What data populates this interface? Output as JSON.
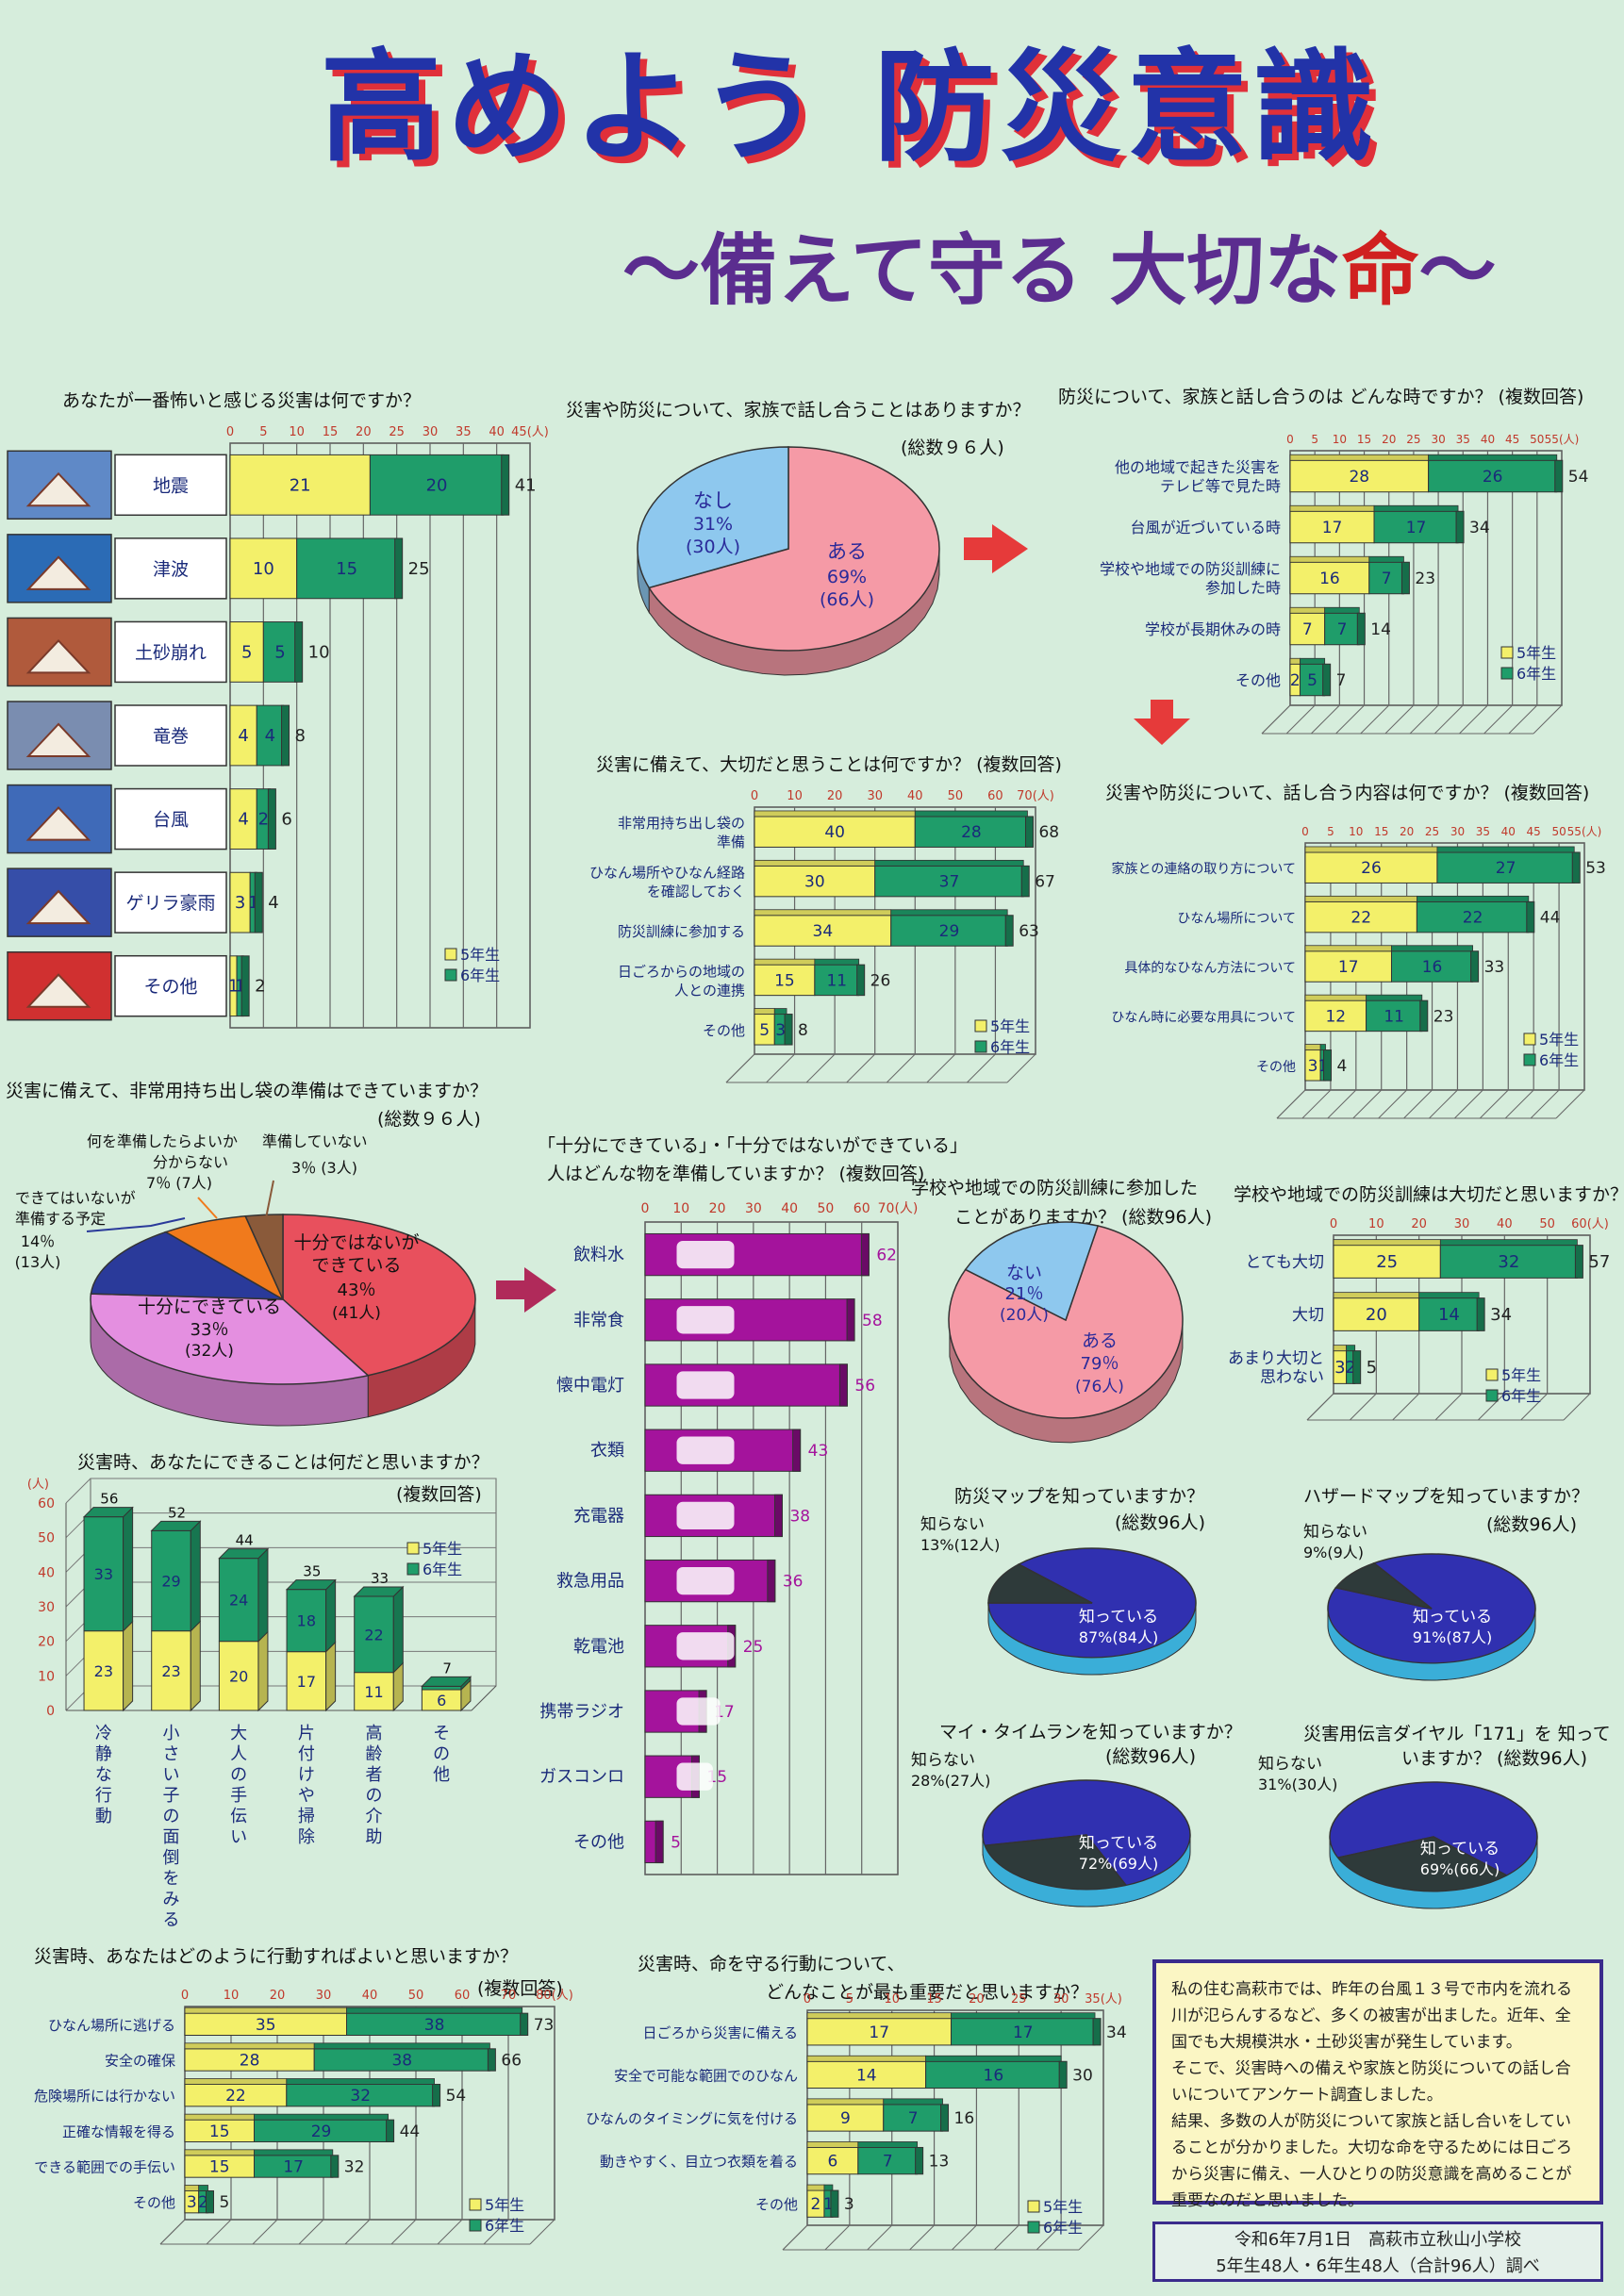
{
  "title": "高めよう 防災意識",
  "subtitle_pre": "～備えて守る 大切な",
  "subtitle_red": "命",
  "subtitle_post": "～",
  "legend": {
    "g5": "5年生",
    "g6": "6年生"
  },
  "colors": {
    "g5": "#f3f06a",
    "g6": "#1f9d6a",
    "pie_pink": "#f59aa6",
    "pie_blue": "#8ec8ee",
    "magenta": "#a4139c",
    "dark_blue": "#3030b0",
    "cyan": "#3aaed8",
    "dark_gray": "#2e3a3a"
  },
  "q1": {
    "title": "あなたが一番怖いと感じる災害は何ですか？",
    "chart_data": {
      "type": "bar",
      "orientation": "horizontal",
      "stacked": true,
      "categories": [
        "地震",
        "津波",
        "土砂崩れ",
        "竜巻",
        "台風",
        "ゲリラ豪雨",
        "その他"
      ],
      "series": [
        {
          "name": "5年生",
          "values": [
            21,
            10,
            5,
            4,
            4,
            3,
            1
          ]
        },
        {
          "name": "6年生",
          "values": [
            20,
            15,
            5,
            4,
            2,
            1,
            1
          ]
        }
      ],
      "totals": [
        41,
        25,
        10,
        8,
        6,
        4,
        2
      ],
      "xlim": [
        0,
        45
      ],
      "ticks": [
        "0",
        "5",
        "10",
        "15",
        "20",
        "25",
        "30",
        "35",
        "40",
        "45(人)"
      ],
      "legend_position": "bottom-right"
    }
  },
  "q2": {
    "title": "災害や防災について、家族で話し合うことはありますか？",
    "note": "(総数９６人)",
    "chart_data": {
      "type": "pie",
      "slices": [
        {
          "name": "ある",
          "pct": "69%",
          "count": "(66人)",
          "value": 66
        },
        {
          "name": "なし",
          "pct": "31%",
          "count": "(30人)",
          "value": 30
        }
      ]
    }
  },
  "q3": {
    "title": "防災について、家族と話し合うのは どんな時ですか？ (複数回答)",
    "chart_data": {
      "type": "bar",
      "orientation": "horizontal",
      "stacked": true,
      "categories": [
        [
          "他の地域で起きた災害を",
          "テレビ等で見た時"
        ],
        [
          "台風が近づいている時"
        ],
        [
          "学校や地域での防災訓練に",
          "参加した時"
        ],
        [
          "学校が長期休みの時"
        ],
        [
          "その他"
        ]
      ],
      "series": [
        {
          "name": "5年生",
          "values": [
            28,
            17,
            16,
            7,
            2
          ]
        },
        {
          "name": "6年生",
          "values": [
            26,
            17,
            7,
            7,
            5
          ]
        }
      ],
      "totals": [
        54,
        34,
        23,
        14,
        7
      ],
      "xlim": [
        0,
        55
      ],
      "ticks": [
        "0",
        "5",
        "10",
        "15",
        "20",
        "25",
        "30",
        "35",
        "40",
        "45",
        "50",
        "55(人)"
      ],
      "legend_position": "bottom-right"
    }
  },
  "q4": {
    "title": "災害に備えて、大切だと思うことは何ですか？ (複数回答)",
    "chart_data": {
      "type": "bar",
      "orientation": "horizontal",
      "stacked": true,
      "categories": [
        [
          "非常用持ち出し袋の",
          "準備"
        ],
        [
          "ひなん場所やひなん経路",
          "を確認しておく"
        ],
        [
          "防災訓練に参加する"
        ],
        [
          "日ごろからの地域の",
          "人との連携"
        ],
        [
          "その他"
        ]
      ],
      "series": [
        {
          "name": "5年生",
          "values": [
            40,
            30,
            34,
            15,
            5
          ]
        },
        {
          "name": "6年生",
          "values": [
            28,
            37,
            29,
            11,
            3
          ]
        }
      ],
      "totals": [
        68,
        67,
        63,
        26,
        8
      ],
      "xlim": [
        0,
        70
      ],
      "ticks": [
        "0",
        "10",
        "20",
        "30",
        "40",
        "50",
        "60",
        "70(人)"
      ],
      "legend_position": "bottom-right"
    }
  },
  "q5": {
    "title": "災害や防災について、話し合う内容は何ですか？ (複数回答)",
    "chart_data": {
      "type": "bar",
      "orientation": "horizontal",
      "stacked": true,
      "categories": [
        "家族との連絡の取り方について",
        "ひなん場所について",
        "具体的なひなん方法について",
        "ひなん時に必要な用具について",
        "その他"
      ],
      "series": [
        {
          "name": "5年生",
          "values": [
            26,
            22,
            17,
            12,
            3
          ]
        },
        {
          "name": "6年生",
          "values": [
            27,
            22,
            16,
            11,
            1
          ]
        }
      ],
      "totals": [
        53,
        44,
        33,
        23,
        4
      ],
      "xlim": [
        0,
        55
      ],
      "ticks": [
        "0",
        "5",
        "10",
        "15",
        "20",
        "25",
        "30",
        "35",
        "40",
        "45",
        "50",
        "55(人)"
      ],
      "legend_position": "bottom-right"
    }
  },
  "q6": {
    "title": "災害に備えて、非常用持ち出し袋の準備はできていますか？",
    "note": "(総数９６人)",
    "chart_data": {
      "type": "pie",
      "slices": [
        {
          "name": "十分ではないができている",
          "label_lines": [
            "十分ではないが",
            "できている"
          ],
          "pct": "43％",
          "count": "(41人)",
          "value": 41
        },
        {
          "name": "十分にできている",
          "pct": "33％",
          "count": "(32人)",
          "value": 32
        },
        {
          "name": "できてはいないが準備する予定",
          "label_lines": [
            "できてはいないが",
            "準備する予定"
          ],
          "pct": "14％",
          "count": "(13人)",
          "value": 13
        },
        {
          "name": "何を準備したらよいか分からない",
          "label_lines": [
            "何を準備したらよいか",
            "分からない"
          ],
          "pct": "7％",
          "count": "(7人)",
          "value": 7
        },
        {
          "name": "準備していない",
          "pct": "3％",
          "count": "(3人)",
          "value": 3
        }
      ]
    }
  },
  "q7": {
    "title_lines": [
      "「十分にできている」・「十分ではないができている」",
      "人はどんな物を準備していますか？ (複数回答)"
    ],
    "chart_data": {
      "type": "bar",
      "orientation": "horizontal",
      "categories": [
        "飲料水",
        "非常食",
        "懐中電灯",
        "衣類",
        "充電器",
        "救急用品",
        "乾電池",
        "携帯ラジオ",
        "ガスコンロ",
        "その他"
      ],
      "values": [
        62,
        58,
        56,
        43,
        38,
        36,
        25,
        17,
        15,
        5
      ],
      "xlim": [
        0,
        70
      ],
      "ticks": [
        "0",
        "10",
        "20",
        "30",
        "40",
        "50",
        "60",
        "70(人)"
      ]
    }
  },
  "q8": {
    "title": "災害時、あなたにできることは何だと思いますか？",
    "note": "(複数回答)",
    "chart_data": {
      "type": "bar",
      "orientation": "vertical",
      "stacked": true,
      "categories": [
        "冷静な行動",
        "小さい子の面倒をみる",
        "大人の手伝い",
        "片付けや掃除",
        "高齢者の介助",
        "その他"
      ],
      "series": [
        {
          "name": "5年生",
          "values": [
            23,
            23,
            20,
            17,
            11,
            6
          ]
        },
        {
          "name": "6年生",
          "values": [
            33,
            29,
            24,
            18,
            22,
            1
          ]
        }
      ],
      "totals": [
        56,
        52,
        44,
        35,
        33,
        7
      ],
      "ylim": [
        0,
        60
      ],
      "yticks": [
        "0",
        "10",
        "20",
        "30",
        "40",
        "50",
        "60"
      ],
      "yunit": "(人)",
      "legend_position": "top-right"
    }
  },
  "q9": {
    "title_lines": [
      "学校や地域での防災訓練に参加した",
      "ことがありますか？ (総数96人)"
    ],
    "chart_data": {
      "type": "pie",
      "slices": [
        {
          "name": "ある",
          "pct": "79％",
          "count": "(76人)",
          "value": 76
        },
        {
          "name": "ない",
          "pct": "21％",
          "count": "(20人)",
          "value": 20
        }
      ]
    }
  },
  "q10": {
    "title": "学校や地域での防災訓練は大切だと思いますか？",
    "chart_data": {
      "type": "bar",
      "orientation": "horizontal",
      "stacked": true,
      "categories": [
        [
          "とても大切"
        ],
        [
          "大切"
        ],
        [
          "あまり大切と",
          "思わない"
        ]
      ],
      "series": [
        {
          "name": "5年生",
          "values": [
            25,
            20,
            3
          ]
        },
        {
          "name": "6年生",
          "values": [
            32,
            14,
            2
          ]
        }
      ],
      "totals": [
        57,
        34,
        5
      ],
      "xlim": [
        0,
        60
      ],
      "ticks": [
        "0",
        "10",
        "20",
        "30",
        "40",
        "50",
        "60(人)"
      ],
      "legend_position": "bottom-right"
    }
  },
  "q11": {
    "title": "防災マップを知っていますか？",
    "note": "(総数96人)",
    "chart_data": {
      "type": "pie",
      "slices": [
        {
          "name": "知っている",
          "pct": "87%",
          "count": "(84人)",
          "value": 84
        },
        {
          "name": "知らない",
          "pct": "13%",
          "count": "(12人)",
          "value": 12
        }
      ]
    }
  },
  "q12": {
    "title": "ハザードマップを知っていますか？",
    "note": "(総数96人)",
    "chart_data": {
      "type": "pie",
      "slices": [
        {
          "name": "知っている",
          "pct": "91%",
          "count": "(87人)",
          "value": 87
        },
        {
          "name": "知らない",
          "pct": "9%",
          "count": "(9人)",
          "value": 9
        }
      ]
    }
  },
  "q13": {
    "title": "マイ・タイムランを知っていますか？",
    "note": "(総数96人)",
    "chart_data": {
      "type": "pie",
      "slices": [
        {
          "name": "知っている",
          "pct": "72%",
          "count": "(69人)",
          "value": 69
        },
        {
          "name": "知らない",
          "pct": "28%",
          "count": "(27人)",
          "value": 27
        }
      ]
    }
  },
  "q14": {
    "title": "災害用伝言ダイヤル「171」を 知って",
    "title2": "いますか？ (総数96人)",
    "chart_data": {
      "type": "pie",
      "slices": [
        {
          "name": "知っている",
          "pct": "69%",
          "count": "(66人)",
          "value": 66
        },
        {
          "name": "知らない",
          "pct": "31%",
          "count": "(30人)",
          "value": 30
        }
      ]
    }
  },
  "q15": {
    "title": "災害時、あなたはどのように行動すればよいと思いますか？",
    "note": "(複数回答)",
    "chart_data": {
      "type": "bar",
      "orientation": "horizontal",
      "stacked": true,
      "categories": [
        [
          "ひなん場所に逃げる"
        ],
        [
          "安全の確保"
        ],
        [
          "危険場所には行かない"
        ],
        [
          "正確な情報を得る"
        ],
        [
          "できる範囲での手伝い"
        ],
        [
          "その他"
        ]
      ],
      "series": [
        {
          "name": "5年生",
          "values": [
            35,
            28,
            22,
            15,
            15,
            3
          ]
        },
        {
          "name": "6年生",
          "values": [
            38,
            38,
            32,
            29,
            17,
            2
          ]
        }
      ],
      "totals": [
        73,
        66,
        54,
        44,
        32,
        5
      ],
      "xlim": [
        0,
        80
      ],
      "ticks": [
        "0",
        "10",
        "20",
        "30",
        "40",
        "50",
        "60",
        "70",
        "80(人)"
      ],
      "legend_position": "bottom-right"
    }
  },
  "q16": {
    "title_lines": [
      "災害時、命を守る行動について、",
      "どんなことが最も重要だと思いますか？"
    ],
    "chart_data": {
      "type": "bar",
      "orientation": "horizontal",
      "stacked": true,
      "categories": [
        [
          "日ごろから災害に備える"
        ],
        [
          "安全で可能な範囲でのひなん"
        ],
        [
          "ひなんのタイミングに気を付ける"
        ],
        [
          "動きやすく、目立つ衣類を着る"
        ],
        [
          "その他"
        ]
      ],
      "series": [
        {
          "name": "5年生",
          "values": [
            17,
            14,
            9,
            6,
            2
          ]
        },
        {
          "name": "6年生",
          "values": [
            17,
            16,
            7,
            7,
            1
          ]
        }
      ],
      "totals": [
        34,
        30,
        16,
        13,
        3
      ],
      "xlim": [
        0,
        35
      ],
      "ticks": [
        "0",
        "5",
        "10",
        "15",
        "20",
        "25",
        "30",
        "35(人)"
      ],
      "legend_position": "bottom-right"
    }
  },
  "summary": [
    "私の住む高萩市では、昨年の台風１３号で市内を流れる川が氾らんするなど、多くの被害が出ました。近年、全国でも大規模洪水・土砂災害が発生しています。",
    "そこで、災害時への備えや家族と防災についての話し合いについてアンケート調査しました。",
    "結果、多数の人が防災について家族と話し合いをしていることが分かりました。大切な命を守るためには日ごろから災害に備え、一人ひとりの防災意識を高めることが重要なのだと思いました。"
  ],
  "credit": [
    "令和6年7月1日　高萩市立秋山小学校",
    "5年生48人・6年生48人（合計96人）調べ"
  ]
}
